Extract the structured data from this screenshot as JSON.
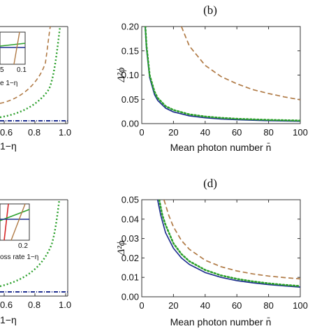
{
  "panel_labels": {
    "b": "(b)",
    "d": "(d)"
  },
  "left_partial": {
    "top": {
      "xticks": [
        "0.6",
        "0.8",
        "1.0"
      ],
      "xlabel": "1−η",
      "inset_ticks": [
        "5",
        "0.1"
      ],
      "inset_xlabel": "e 1−η"
    },
    "bottom": {
      "xticks": [
        "0.6",
        "0.8",
        "1.0"
      ],
      "xlabel": "1−η",
      "inset_ticks": [
        "0.2"
      ],
      "inset_xlabel": "oss rate 1−η"
    }
  },
  "colors": {
    "blue": "#1f2f8f",
    "green": "#2ca02c",
    "brown": "#b07a45",
    "red": "#d62728"
  },
  "chart_data": [
    {
      "type": "line",
      "panel": "(b)",
      "xlabel": "Mean photon number n̄",
      "ylabel": "Δ²ϕ",
      "xlim": [
        0,
        100
      ],
      "ylim": [
        0,
        0.2
      ],
      "xticks": [
        0,
        20,
        40,
        60,
        80,
        100
      ],
      "yticks": [
        "0.00",
        "0.05",
        "0.10",
        "0.15",
        "0.20"
      ],
      "series": [
        {
          "style": "solid",
          "color": "#1f2f8f",
          "x": [
            1,
            2,
            3,
            5,
            8,
            10,
            15,
            20,
            30,
            40,
            50,
            60,
            80,
            100
          ],
          "y": [
            0.26,
            0.21,
            0.155,
            0.095,
            0.06,
            0.048,
            0.032,
            0.024,
            0.016,
            0.012,
            0.0095,
            0.008,
            0.006,
            0.0048
          ]
        },
        {
          "style": "dotted",
          "color": "#2ca02c",
          "x": [
            2,
            3,
            5,
            8,
            10,
            15,
            20,
            30,
            40,
            50,
            60,
            80,
            100
          ],
          "y": [
            0.215,
            0.16,
            0.1,
            0.066,
            0.053,
            0.036,
            0.028,
            0.019,
            0.0145,
            0.0118,
            0.0099,
            0.0076,
            0.0062
          ]
        },
        {
          "style": "dashed",
          "color": "#b07a45",
          "x": [
            25,
            30,
            40,
            50,
            60,
            70,
            80,
            90,
            100
          ],
          "y": [
            0.2,
            0.16,
            0.12,
            0.097,
            0.082,
            0.07,
            0.062,
            0.055,
            0.049
          ]
        }
      ]
    },
    {
      "type": "line",
      "panel": "(d)",
      "xlabel": "Mean photon number n̄",
      "ylabel": "Δ²ϕ",
      "xlim": [
        0,
        100
      ],
      "ylim": [
        0,
        0.05
      ],
      "xticks": [
        0,
        20,
        40,
        60,
        80,
        100
      ],
      "yticks": [
        "0.00",
        "0.01",
        "0.02",
        "0.03",
        "0.04",
        "0.05"
      ],
      "series": [
        {
          "style": "solid",
          "color": "#1f2f8f",
          "x": [
            10,
            12,
            15,
            20,
            25,
            30,
            40,
            50,
            60,
            70,
            80,
            90,
            100
          ],
          "y": [
            0.05,
            0.042,
            0.033,
            0.025,
            0.02,
            0.0167,
            0.0125,
            0.01,
            0.0083,
            0.0072,
            0.0063,
            0.0056,
            0.005
          ]
        },
        {
          "style": "dotted",
          "color": "#2ca02c",
          "x": [
            11,
            13,
            15,
            20,
            25,
            30,
            40,
            50,
            60,
            70,
            80,
            90,
            100
          ],
          "y": [
            0.05,
            0.042,
            0.037,
            0.0275,
            0.022,
            0.0183,
            0.0138,
            0.011,
            0.0092,
            0.0079,
            0.0069,
            0.0061,
            0.0055
          ]
        },
        {
          "style": "dashed",
          "color": "#b07a45",
          "x": [
            14,
            17,
            20,
            25,
            30,
            40,
            50,
            60,
            70,
            80,
            90,
            100
          ],
          "y": [
            0.05,
            0.042,
            0.036,
            0.029,
            0.0245,
            0.0188,
            0.0155,
            0.0133,
            0.0118,
            0.0107,
            0.0099,
            0.0092
          ]
        }
      ]
    }
  ]
}
